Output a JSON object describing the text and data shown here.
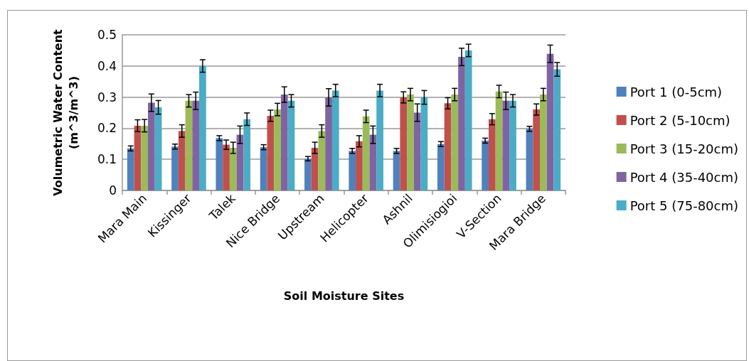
{
  "chart_data": {
    "type": "bar",
    "xlabel": "Soil Moisture Sites",
    "ylabel": "Volumetric Water Content\n(m^3/m^3)",
    "categories": [
      "Mara Main",
      "Kissinger",
      "Talek",
      "Nice Bridge",
      "Upstream",
      "Helicopter",
      "Ashnil",
      "Olimisiogioi",
      "V-Section",
      "Mara Bridge"
    ],
    "series": [
      {
        "name": "Port 1 (0-5cm)",
        "color": "#4f81bd",
        "values": [
          0.135,
          0.141,
          0.168,
          0.139,
          0.102,
          0.127,
          0.127,
          0.149,
          0.16,
          0.198
        ],
        "errors": [
          0.008,
          0.008,
          0.008,
          0.008,
          0.007,
          0.008,
          0.008,
          0.008,
          0.008,
          0.008
        ]
      },
      {
        "name": "Port 2 (5-10cm)",
        "color": "#c0504d",
        "values": [
          0.208,
          0.191,
          0.147,
          0.24,
          0.137,
          0.158,
          0.299,
          0.28,
          0.229,
          0.26
        ],
        "errors": [
          0.019,
          0.02,
          0.015,
          0.018,
          0.018,
          0.018,
          0.018,
          0.018,
          0.018,
          0.018
        ]
      },
      {
        "name": "Port 3 (15-20cm)",
        "color": "#9bbb59",
        "values": [
          0.208,
          0.288,
          0.137,
          0.26,
          0.191,
          0.238,
          0.308,
          0.308,
          0.318,
          0.308
        ],
        "errors": [
          0.02,
          0.02,
          0.018,
          0.02,
          0.02,
          0.02,
          0.02,
          0.02,
          0.02,
          0.02
        ]
      },
      {
        "name": "Port 4 (35-40cm)",
        "color": "#8064a2",
        "values": [
          0.282,
          0.288,
          0.179,
          0.308,
          0.299,
          0.179,
          0.25,
          0.429,
          0.288,
          0.439
        ],
        "errors": [
          0.028,
          0.028,
          0.028,
          0.025,
          0.028,
          0.028,
          0.028,
          0.028,
          0.028,
          0.028
        ]
      },
      {
        "name": "Port 5 (75-80cm)",
        "color": "#4bacc6",
        "values": [
          0.267,
          0.4,
          0.229,
          0.288,
          0.321,
          0.321,
          0.299,
          0.45,
          0.288,
          0.389
        ],
        "errors": [
          0.022,
          0.02,
          0.02,
          0.02,
          0.02,
          0.02,
          0.022,
          0.02,
          0.02,
          0.022
        ]
      }
    ],
    "ylim": [
      0,
      0.5
    ],
    "yticks": [
      0,
      0.1,
      0.2,
      0.3,
      0.4,
      0.5
    ],
    "grid": "y",
    "legend": "right"
  }
}
